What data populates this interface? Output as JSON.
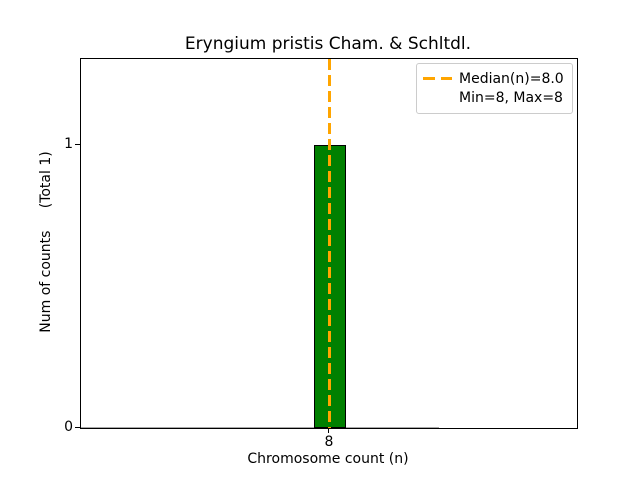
{
  "title": "Eryngium pristis Cham. & Schltdl.",
  "axes": {
    "xlabel": "Chromosome count (n)",
    "ylabel": "Num of counts     (Total 1)",
    "yticks": [
      {
        "label": "0",
        "value": 0
      },
      {
        "label": "1",
        "value": 1
      }
    ],
    "xticks": [
      {
        "label": "8",
        "value": 8
      }
    ]
  },
  "legend": {
    "items": [
      {
        "label": "Median(n)=8.0",
        "handle": "orange-dashed-line"
      },
      {
        "label": "Min=8, Max=8",
        "handle": "none"
      }
    ]
  },
  "colors": {
    "bar": "#008000",
    "bar_edge": "#000000",
    "median_line": "#FFA500",
    "legend_border": "#cccccc",
    "zero_line": "#a8a8a8",
    "text": "#000000",
    "background": "#ffffff"
  },
  "chart_data": {
    "type": "bar",
    "subtype": "histogram",
    "title": "Eryngium pristis Cham. & Schltdl.",
    "xlabel": "Chromosome count (n)",
    "ylabel": "Num of counts     (Total 1)",
    "categories": [
      8
    ],
    "values": [
      1
    ],
    "bar_width": 1,
    "total_count": 1,
    "median": 8.0,
    "min": 8,
    "max": 8,
    "xticks": [
      8
    ],
    "yticks": [
      0,
      1
    ],
    "xlim": [
      0.22,
      15.72
    ],
    "ylim": [
      0,
      1.305
    ],
    "grid": false,
    "legend_position": "upper right",
    "legend_entries": [
      "Median(n)=8.0",
      "Min=8, Max=8"
    ],
    "median_line_style": "dashed"
  }
}
